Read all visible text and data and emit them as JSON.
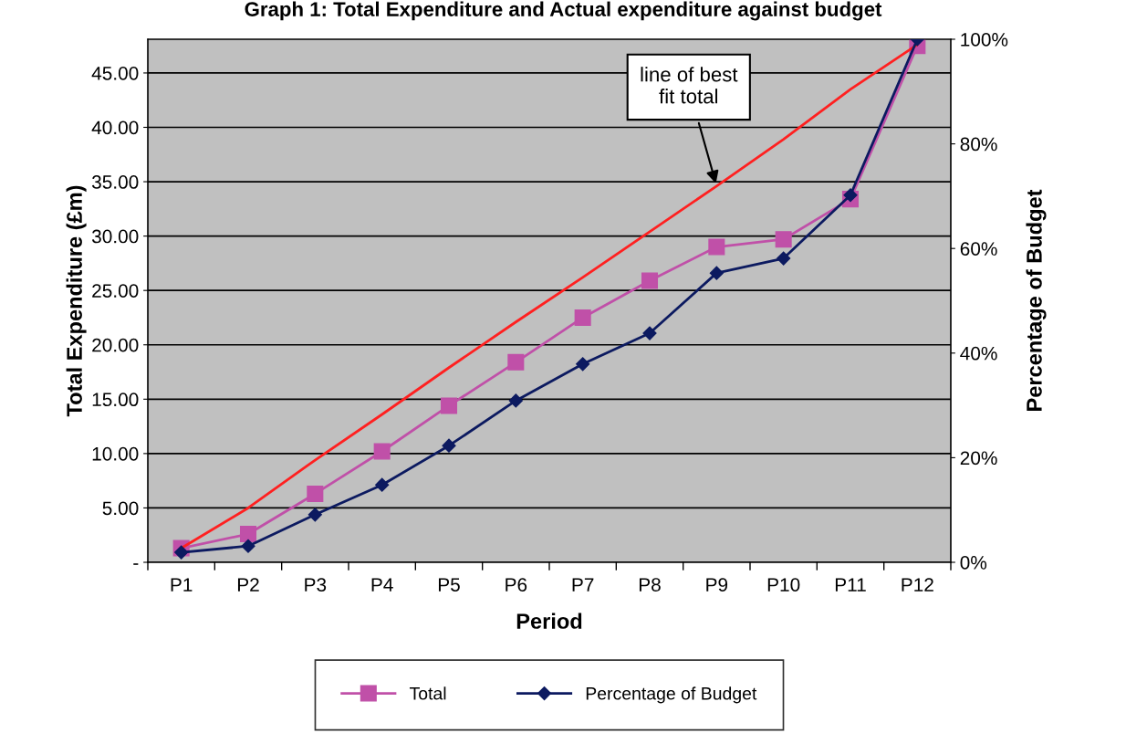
{
  "chart_data": {
    "type": "line",
    "title": "Graph 1: Total Expenditure and Actual expenditure against budget",
    "xlabel": "Period",
    "ylabel": "Total Expenditure (£m)",
    "y2label": "Percentage of Budget",
    "categories": [
      "P1",
      "P2",
      "P3",
      "P4",
      "P5",
      "P6",
      "P7",
      "P8",
      "P9",
      "P10",
      "P11",
      "P12"
    ],
    "series": [
      {
        "name": "Total",
        "color": "#c050a8",
        "marker": "square",
        "values": [
          1.3,
          2.6,
          6.3,
          10.2,
          14.4,
          18.4,
          22.5,
          25.9,
          29.0,
          29.7,
          33.4,
          47.5
        ]
      },
      {
        "name": "Percentage of Budget",
        "color": "#0c1a60",
        "marker": "diamond",
        "axis": "y2",
        "values": [
          1.9,
          3.1,
          9.1,
          14.8,
          22.3,
          30.9,
          37.9,
          43.8,
          55.3,
          58.1,
          70.2,
          100
        ]
      },
      {
        "color": "#ff2020",
        "marker": "none",
        "values": [
          1.3,
          5.0,
          9.4,
          13.6,
          17.9,
          22.1,
          26.2,
          30.4,
          34.6,
          38.9,
          43.5,
          47.6
        ]
      }
    ],
    "ylim": [
      0,
      48.1
    ],
    "yticks": [
      {
        "value": 0,
        "label": "-"
      },
      {
        "value": 5,
        "label": "5.00"
      },
      {
        "value": 10,
        "label": "10.00"
      },
      {
        "value": 15,
        "label": "15.00"
      },
      {
        "value": 20,
        "label": "20.00"
      },
      {
        "value": 25,
        "label": "25.00"
      },
      {
        "value": 30,
        "label": "30.00"
      },
      {
        "value": 35,
        "label": "35.00"
      },
      {
        "value": 40,
        "label": "40.00"
      },
      {
        "value": 45,
        "label": "45.00"
      }
    ],
    "y2lim": [
      0,
      100
    ],
    "y2ticks": [
      {
        "value": 0,
        "label": "0%"
      },
      {
        "value": 20,
        "label": "20%"
      },
      {
        "value": 40,
        "label": "40%"
      },
      {
        "value": 60,
        "label": "60%"
      },
      {
        "value": 80,
        "label": "80%"
      },
      {
        "value": 100,
        "label": "100%"
      }
    ],
    "annotations": [
      {
        "text": "line of best\nfit total",
        "x": "P9",
        "y": 34.6
      }
    ],
    "grid": "y",
    "legend": "bottom"
  }
}
